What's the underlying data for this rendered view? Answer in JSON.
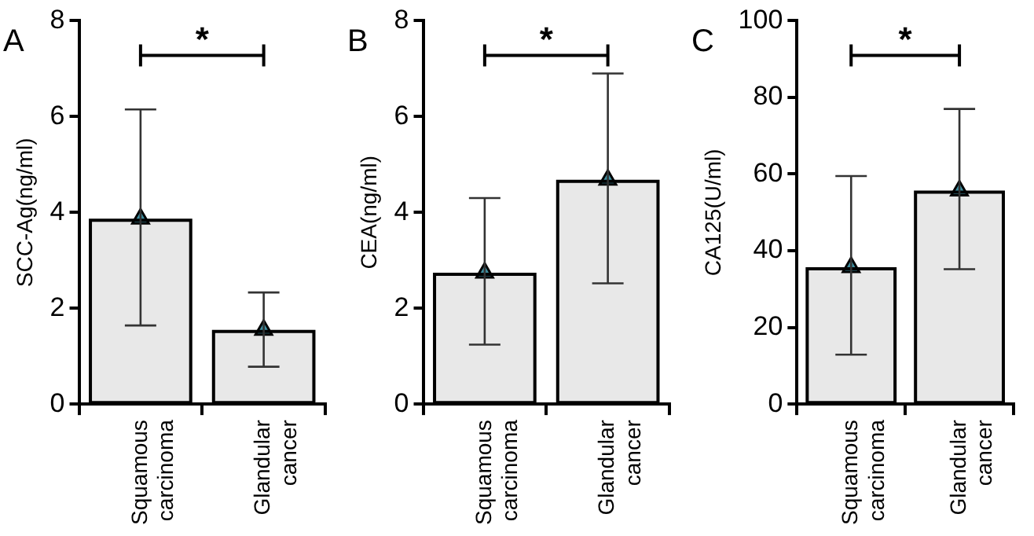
{
  "chart_data": [
    {
      "type": "bar",
      "title": "A",
      "ylabel": "SCC-Ag(ng/ml)",
      "categories": [
        "Squamous carcinoma",
        "Glandular cancer"
      ],
      "ylim": [
        0,
        8
      ],
      "yticks": [
        0,
        2,
        4,
        6,
        8
      ],
      "grid": false,
      "legend": false,
      "marker": "triangle",
      "annotations": [
        "*"
      ],
      "series": [
        {
          "color": "#e8e8e8",
          "values": [
            3.87,
            1.55
          ],
          "errors": [
            [
              1.64,
              6.15
            ],
            [
              0.78,
              2.33
            ]
          ]
        },
        {
          "type": "scatter",
          "color": "#3f8fa0",
          "x": [
            "Squamous carcinoma",
            "Glandular cancer"
          ],
          "values": [
            3.87,
            1.55
          ]
        }
      ]
    },
    {
      "type": "bar",
      "title": "B",
      "ylabel": "CEA(ng/ml)",
      "categories": [
        "Squamous carcinoma",
        "Glandular cancer"
      ],
      "ylim": [
        0,
        8
      ],
      "yticks": [
        0,
        2,
        4,
        6,
        8
      ],
      "grid": false,
      "legend": false,
      "marker": "triangle",
      "annotations": [
        "*"
      ],
      "series": [
        {
          "color": "#e8e8e8",
          "values": [
            2.74,
            4.68
          ],
          "errors": [
            [
              1.24,
              4.3
            ],
            [
              2.52,
              6.9
            ]
          ]
        },
        {
          "type": "scatter",
          "color": "#3f8fa0",
          "x": [
            "Squamous carcinoma",
            "Glandular cancer"
          ],
          "values": [
            2.74,
            4.68
          ]
        }
      ]
    },
    {
      "type": "bar",
      "title": "C",
      "ylabel": "CA125(U/ml)",
      "categories": [
        "Squamous carcinoma",
        "Glandular cancer"
      ],
      "ylim": [
        0,
        100
      ],
      "yticks": [
        0,
        20,
        40,
        60,
        80,
        100
      ],
      "grid": false,
      "legend": false,
      "marker": "triangle",
      "annotations": [
        "*"
      ],
      "series": [
        {
          "color": "#e8e8e8",
          "values": [
            35.7,
            55.7
          ],
          "errors": [
            [
              12.9,
              59.5
            ],
            [
              35.2,
              77
            ]
          ]
        },
        {
          "type": "scatter",
          "color": "#3f8fa0",
          "x": [
            "Squamous carcinoma",
            "Glandular cancer"
          ],
          "values": [
            35.7,
            55.7
          ]
        }
      ]
    }
  ]
}
